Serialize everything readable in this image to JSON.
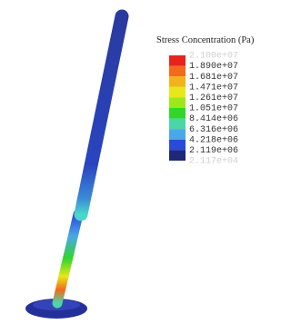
{
  "legend": {
    "title": "Stress Concentration (Pa)",
    "labels": [
      "2.100e+07",
      "1.890e+07",
      "1.681e+07",
      "1.471e+07",
      "1.261e+07",
      "1.051e+07",
      "8.414e+06",
      "6.316e+06",
      "4.218e+06",
      "2.119e+06",
      "2.117e+04"
    ],
    "colors": [
      "#e8221c",
      "#f26a1a",
      "#f2b21a",
      "#e6e81a",
      "#9ee81a",
      "#32d62a",
      "#4ad6a8",
      "#4aa8e8",
      "#2a4ad8",
      "#1e2878"
    ]
  }
}
